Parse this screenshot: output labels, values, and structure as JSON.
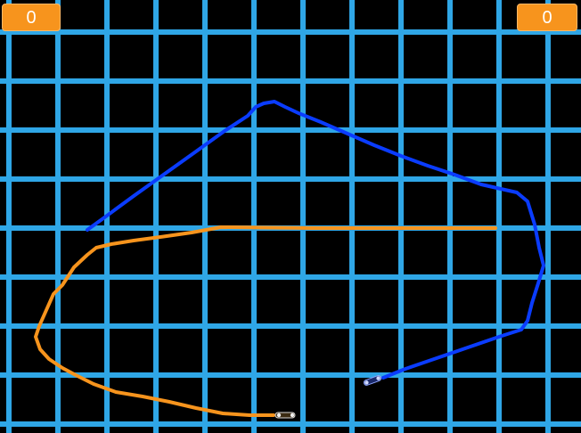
{
  "scores": {
    "left": "0",
    "right": "0"
  },
  "colors": {
    "background": "#000000",
    "grid": "#2fa6e6",
    "player_blue": "#0a3cff",
    "player_orange": "#f7941d",
    "score_badge": "#f7941d"
  },
  "players": [
    {
      "id": "blue",
      "icon": "lightcycle-icon"
    },
    {
      "id": "orange",
      "icon": "lightcycle-icon"
    }
  ]
}
